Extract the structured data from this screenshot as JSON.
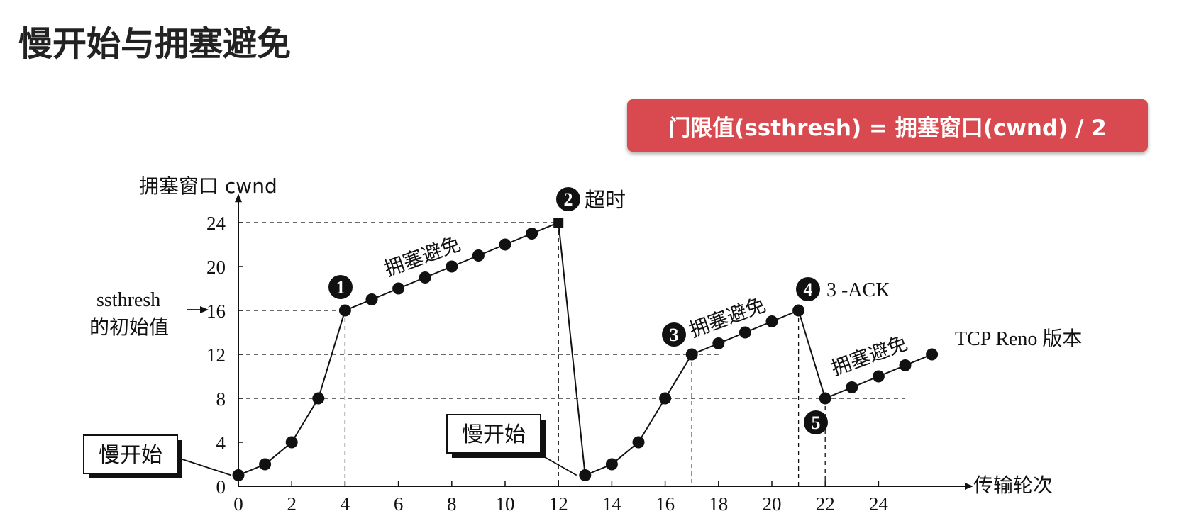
{
  "page": {
    "title": "慢开始与拥塞避免",
    "formula": "门限值(ssthresh) = 拥塞窗口(cwnd) / 2"
  },
  "colors": {
    "banner": "#d84a4f",
    "ink": "#111111"
  },
  "chart_data": {
    "type": "line",
    "ylabel": "拥塞窗口 cwnd",
    "xlabel": "传输轮次",
    "x_ticks": [
      0,
      2,
      4,
      6,
      8,
      10,
      12,
      14,
      16,
      18,
      20,
      22,
      24
    ],
    "y_ticks": [
      0,
      4,
      8,
      12,
      16,
      20,
      24
    ],
    "xlim": [
      0,
      27.5
    ],
    "ylim": [
      0,
      26.5
    ],
    "series": [
      {
        "x": [
          0,
          1,
          2,
          3,
          4,
          5,
          6,
          7,
          8,
          9,
          10,
          11,
          12,
          13,
          14,
          15,
          16,
          17,
          18,
          19,
          20,
          21,
          22,
          23,
          24,
          25,
          26
        ],
        "y": [
          1,
          2,
          4,
          8,
          16,
          17,
          18,
          19,
          20,
          21,
          22,
          23,
          24,
          1,
          2,
          4,
          8,
          12,
          13,
          14,
          15,
          16,
          8,
          9,
          10,
          11,
          12
        ]
      }
    ],
    "ssthresh_label": [
      "ssthresh",
      "的初始值"
    ],
    "annotations": {
      "slow_start_1": "慢开始",
      "slow_start_2": "慢开始",
      "ca_1": "拥塞避免",
      "ca_2": "拥塞避免",
      "ca_3": "拥塞避免",
      "timeout": "超时",
      "three_ack": "3 -ACK",
      "reno": "TCP Reno 版本"
    },
    "markers": [
      "1",
      "2",
      "3",
      "4",
      "5"
    ]
  }
}
